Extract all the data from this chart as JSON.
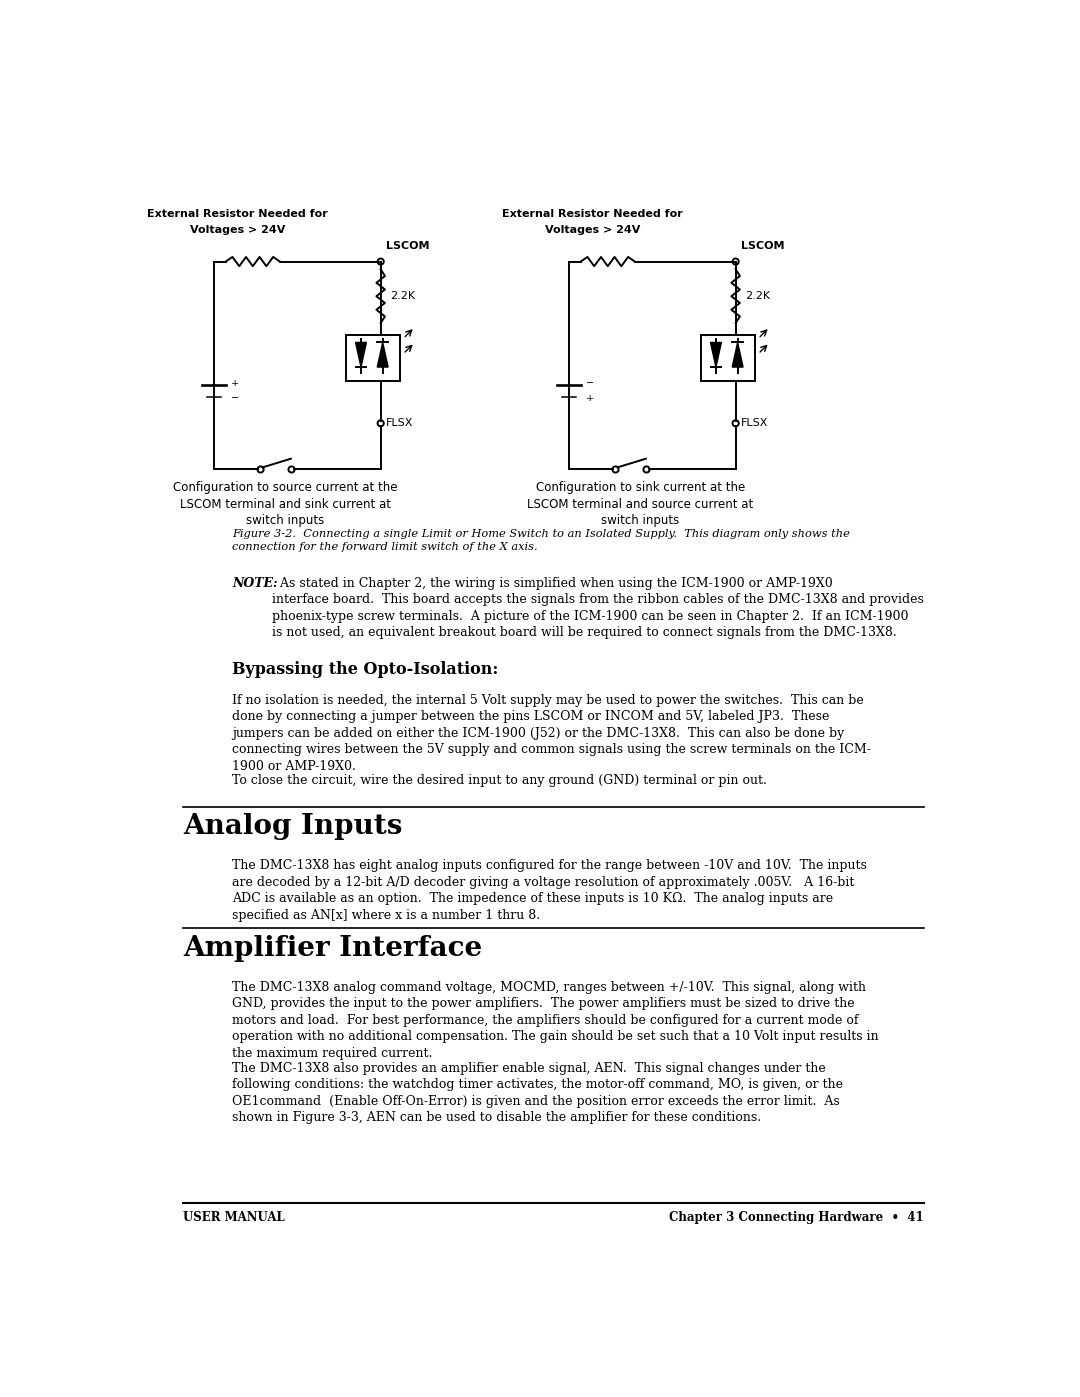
{
  "bg_color": "#ffffff",
  "page_width": 10.8,
  "page_height": 13.97,
  "fig3_caption": "Figure 3-2.  Connecting a single Limit or Home Switch to an Isolated Supply.  This diagram only shows the\nconnection for the forward limit switch of the X axis.",
  "note_text_full": "NOTE:  As stated in Chapter 2, the wiring is simplified when using the ICM-1900 or AMP-19X0\ninterface board.  This board accepts the signals from the ribbon cables of the DMC-13X8 and provides\nphoenix-type screw terminals.  A picture of the ICM-1900 can be seen in Chapter 2.  If an ICM-1900\nis not used, an equivalent breakout board will be required to connect signals from the DMC-13X8.",
  "bypass_heading": "Bypassing the Opto-Isolation:",
  "bypass_p1": "If no isolation is needed, the internal 5 Volt supply may be used to power the switches.  This can be\ndone by connecting a jumper between the pins LSCOM or INCOM and 5V, labeled JP3.  These\njumpers can be added on either the ICM-1900 (J52) or the DMC-13X8.  This can also be done by\nconnecting wires between the 5V supply and common signals using the screw terminals on the ICM-\n1900 or AMP-19X0.",
  "bypass_p2": "To close the circuit, wire the desired input to any ground (GND) terminal or pin out.",
  "analog_heading": "Analog Inputs",
  "analog_p1": "The DMC-13X8 has eight analog inputs configured for the range between -10V and 10V.  The inputs\nare decoded by a 12-bit A/D decoder giving a voltage resolution of approximately .005V.   A 16-bit\nADC is available as an option.  The impedence of these inputs is 10 KΩ.  The analog inputs are\nspecified as AN[x] where x is a number 1 thru 8.",
  "amplifier_heading": "Amplifier Interface",
  "amplifier_p1": "The DMC-13X8 analog command voltage, MOCMD, ranges between +/-10V.  This signal, along with\nGND, provides the input to the power amplifiers.  The power amplifiers must be sized to drive the\nmotors and load.  For best performance, the amplifiers should be configured for a current mode of\noperation with no additional compensation. The gain should be set such that a 10 Volt input results in\nthe maximum required current.",
  "amplifier_p2": "The DMC-13X8 also provides an amplifier enable signal, AEN.  This signal changes under the\nfollowing conditions: the watchdog timer activates, the motor-off command, MO, is given, or the\nOE1command  (Enable Off-On-Error) is given and the position error exceeds the error limit.  As\nshown in Figure 3-3, AEN can be used to disable the amplifier for these conditions.",
  "footer_left": "USER MANUAL",
  "footer_right": "Chapter 3 Connecting Hardware  •  41",
  "diag1_label1": "External Resistor Needed for",
  "diag1_label2": "Voltages > 24V",
  "diag1_lscom": "LSCOM",
  "diag1_resistor": "2.2K",
  "diag1_flsx": "FLSX",
  "diag1_caption": "Configuration to source current at the\nLSCOM terminal and sink current at\nswitch inputs",
  "diag2_label1": "External Resistor Needed for",
  "diag2_label2": "Voltages > 24V",
  "diag2_lscom": "LSCOM",
  "diag2_resistor": "2.2K",
  "diag2_flsx": "FLSX",
  "diag2_caption": "Configuration to sink current at the\nLSCOM terminal and source current at\nswitch inputs"
}
